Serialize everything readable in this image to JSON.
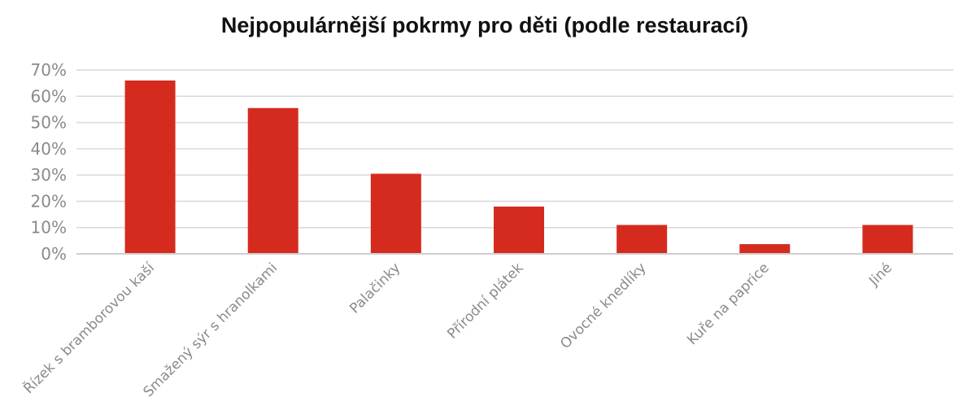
{
  "chart_data": {
    "type": "bar",
    "title": "Nejpopulárnější pokrmy pro děti (podle restaurací)",
    "categories": [
      "Řízek s bramborovou kaší",
      "Smažený sýr s hranolkami",
      "Palačinky",
      "Přírodní plátek",
      "Ovocné knedlíky",
      "Kuře na paprice",
      "Jiné"
    ],
    "values": [
      66,
      55.5,
      30.5,
      18,
      11,
      3.7,
      11
    ],
    "ylim": [
      0,
      70
    ],
    "yticks": [
      "0%",
      "10%",
      "20%",
      "30%",
      "40%",
      "50%",
      "60%",
      "70%"
    ],
    "grid": true,
    "bar_color": "#d52b1e"
  }
}
